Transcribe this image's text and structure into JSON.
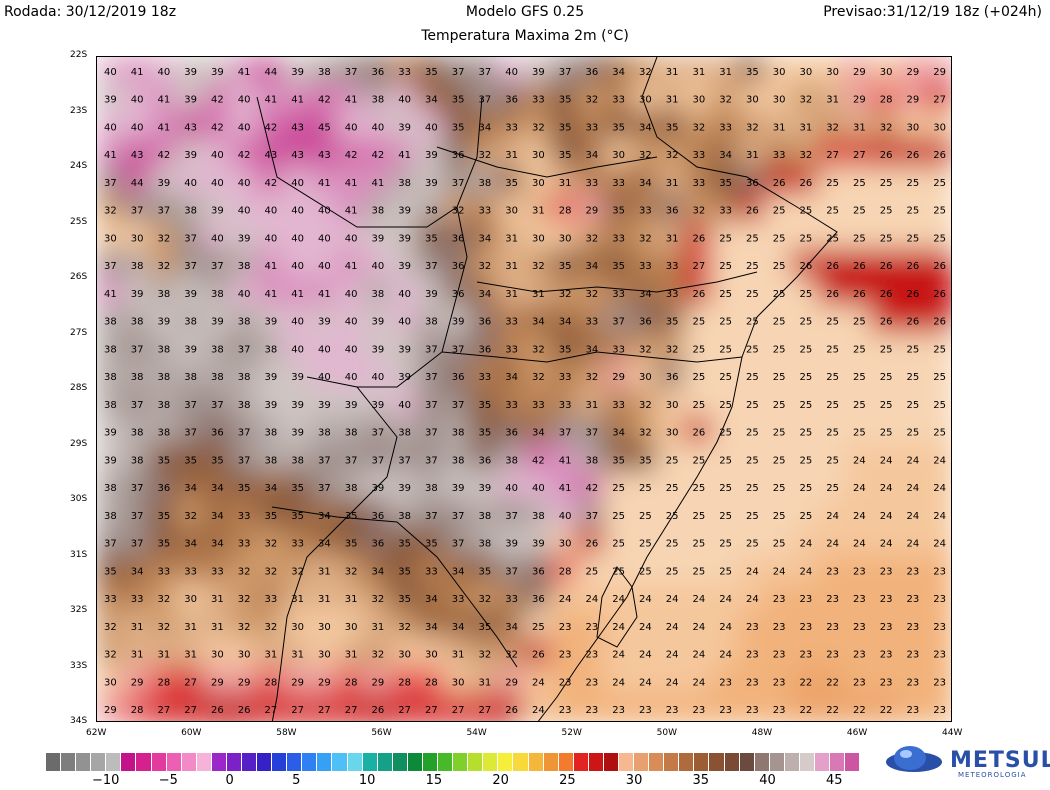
{
  "header": {
    "run": "Rodada: 30/12/2019 18z",
    "model": "Modelo GFS 0.25",
    "forecast": "Previsao:31/12/19 18z (+024h)",
    "field": "Temperatura Maxima 2m (°C)"
  },
  "map": {
    "lat_labels": [
      "22S",
      "23S",
      "24S",
      "25S",
      "26S",
      "27S",
      "28S",
      "29S",
      "30S",
      "31S",
      "32S",
      "33S",
      "34S"
    ],
    "lon_labels": [
      "62W",
      "60W",
      "58W",
      "56W",
      "54W",
      "52W",
      "50W",
      "48W",
      "46W",
      "44W"
    ],
    "temperature_grid": [
      [
        40,
        41,
        40,
        39,
        39,
        41,
        44,
        39,
        38,
        37,
        36,
        33,
        35,
        37,
        37,
        40,
        39,
        37,
        36,
        34,
        32,
        31,
        31,
        31,
        35,
        30,
        30,
        30,
        29,
        30,
        29,
        29
      ],
      [
        39,
        40,
        41,
        39,
        42,
        40,
        41,
        41,
        42,
        41,
        38,
        40,
        34,
        35,
        37,
        36,
        33,
        35,
        32,
        33,
        30,
        31,
        30,
        32,
        30,
        30,
        32,
        31,
        29,
        28,
        29,
        27
      ],
      [
        40,
        40,
        41,
        43,
        42,
        40,
        42,
        43,
        45,
        40,
        40,
        39,
        40,
        35,
        34,
        33,
        32,
        35,
        33,
        35,
        34,
        35,
        32,
        33,
        32,
        31,
        31,
        32,
        31,
        32,
        30,
        30
      ],
      [
        41,
        43,
        42,
        39,
        40,
        42,
        43,
        43,
        43,
        42,
        42,
        41,
        39,
        36,
        32,
        31,
        30,
        35,
        34,
        30,
        32,
        32,
        33,
        34,
        31,
        33,
        32,
        27,
        27,
        26,
        26,
        26
      ],
      [
        37,
        44,
        39,
        40,
        40,
        40,
        42,
        40,
        41,
        41,
        41,
        38,
        39,
        37,
        38,
        35,
        30,
        31,
        33,
        33,
        34,
        31,
        33,
        35,
        36,
        26,
        26,
        25,
        25,
        25,
        25,
        25
      ],
      [
        32,
        37,
        37,
        38,
        39,
        40,
        40,
        40,
        40,
        41,
        38,
        39,
        38,
        32,
        33,
        30,
        31,
        28,
        29,
        35,
        33,
        36,
        32,
        33,
        26,
        25,
        25,
        25,
        25,
        25,
        25,
        25
      ],
      [
        30,
        30,
        32,
        37,
        40,
        39,
        40,
        40,
        40,
        40,
        39,
        39,
        35,
        36,
        34,
        31,
        30,
        30,
        32,
        33,
        32,
        31,
        26,
        25,
        25,
        25,
        25,
        25,
        25,
        25,
        25,
        25
      ],
      [
        37,
        38,
        32,
        37,
        37,
        38,
        41,
        40,
        40,
        41,
        40,
        39,
        37,
        36,
        32,
        31,
        32,
        35,
        34,
        35,
        33,
        33,
        27,
        25,
        25,
        25,
        26,
        26,
        26,
        26,
        26,
        26
      ],
      [
        41,
        39,
        38,
        39,
        38,
        40,
        41,
        41,
        41,
        40,
        38,
        40,
        39,
        36,
        34,
        31,
        31,
        32,
        32,
        33,
        34,
        33,
        26,
        25,
        25,
        25,
        25,
        26,
        26,
        26,
        26,
        26
      ],
      [
        38,
        38,
        39,
        38,
        39,
        38,
        39,
        40,
        39,
        40,
        39,
        40,
        38,
        39,
        36,
        33,
        34,
        34,
        33,
        37,
        36,
        35,
        25,
        25,
        25,
        25,
        25,
        25,
        25,
        26,
        26,
        26
      ],
      [
        38,
        37,
        38,
        39,
        38,
        37,
        38,
        40,
        40,
        40,
        39,
        39,
        37,
        37,
        36,
        33,
        32,
        35,
        34,
        33,
        32,
        32,
        25,
        25,
        25,
        25,
        25,
        25,
        25,
        25,
        25,
        25
      ],
      [
        38,
        38,
        38,
        38,
        38,
        38,
        39,
        39,
        40,
        40,
        40,
        39,
        37,
        36,
        33,
        34,
        32,
        33,
        32,
        29,
        30,
        36,
        25,
        25,
        25,
        25,
        25,
        25,
        25,
        25,
        25,
        25
      ],
      [
        38,
        37,
        38,
        37,
        37,
        38,
        39,
        39,
        39,
        39,
        39,
        40,
        37,
        37,
        35,
        33,
        33,
        33,
        31,
        33,
        32,
        30,
        25,
        25,
        25,
        25,
        25,
        25,
        25,
        25,
        25,
        25
      ],
      [
        39,
        38,
        38,
        37,
        36,
        37,
        38,
        39,
        38,
        38,
        37,
        38,
        37,
        38,
        35,
        36,
        34,
        37,
        37,
        34,
        32,
        30,
        26,
        25,
        25,
        25,
        25,
        25,
        25,
        25,
        25,
        25
      ],
      [
        39,
        38,
        35,
        35,
        35,
        37,
        38,
        38,
        37,
        37,
        37,
        37,
        37,
        38,
        36,
        38,
        42,
        41,
        38,
        35,
        35,
        25,
        25,
        25,
        25,
        25,
        25,
        25,
        24,
        24,
        24,
        24
      ],
      [
        38,
        37,
        36,
        34,
        34,
        35,
        34,
        35,
        37,
        38,
        39,
        39,
        38,
        39,
        39,
        40,
        40,
        41,
        42,
        25,
        25,
        25,
        25,
        25,
        25,
        25,
        25,
        25,
        24,
        24,
        24,
        24
      ],
      [
        38,
        37,
        35,
        32,
        34,
        33,
        35,
        35,
        34,
        35,
        36,
        38,
        37,
        37,
        38,
        37,
        38,
        40,
        37,
        25,
        25,
        25,
        25,
        25,
        25,
        25,
        25,
        24,
        24,
        24,
        24,
        24
      ],
      [
        37,
        37,
        35,
        34,
        34,
        33,
        32,
        33,
        34,
        35,
        36,
        35,
        35,
        37,
        38,
        39,
        39,
        30,
        26,
        25,
        25,
        25,
        25,
        25,
        25,
        25,
        24,
        24,
        24,
        24,
        24,
        24
      ],
      [
        35,
        34,
        33,
        33,
        33,
        32,
        32,
        32,
        31,
        32,
        34,
        35,
        33,
        34,
        35,
        37,
        36,
        28,
        25,
        25,
        25,
        25,
        25,
        25,
        24,
        24,
        24,
        23,
        23,
        23,
        23,
        23
      ],
      [
        33,
        33,
        32,
        30,
        31,
        32,
        33,
        31,
        31,
        31,
        32,
        35,
        34,
        33,
        32,
        33,
        36,
        24,
        24,
        24,
        24,
        24,
        24,
        24,
        24,
        23,
        23,
        23,
        23,
        23,
        23,
        23
      ],
      [
        32,
        31,
        32,
        31,
        31,
        32,
        32,
        30,
        30,
        30,
        31,
        32,
        34,
        34,
        35,
        34,
        25,
        23,
        23,
        24,
        24,
        24,
        24,
        24,
        23,
        23,
        23,
        23,
        23,
        23,
        23,
        23
      ],
      [
        32,
        31,
        31,
        31,
        30,
        30,
        31,
        31,
        30,
        31,
        32,
        30,
        30,
        31,
        32,
        32,
        26,
        23,
        23,
        24,
        24,
        24,
        24,
        24,
        23,
        23,
        23,
        23,
        23,
        23,
        23,
        23
      ],
      [
        30,
        29,
        28,
        27,
        29,
        29,
        28,
        29,
        29,
        28,
        29,
        28,
        28,
        30,
        31,
        29,
        24,
        23,
        23,
        24,
        24,
        24,
        24,
        23,
        23,
        23,
        22,
        22,
        23,
        23,
        23,
        23
      ],
      [
        29,
        28,
        27,
        27,
        26,
        26,
        27,
        27,
        27,
        27,
        26,
        27,
        27,
        27,
        27,
        26,
        24,
        23,
        23,
        23,
        23,
        23,
        23,
        23,
        23,
        23,
        22,
        22,
        22,
        22,
        23,
        23
      ]
    ]
  },
  "colorbar": {
    "labels": [
      "−10",
      "−5",
      "0",
      "5",
      "10",
      "15",
      "20",
      "25",
      "30",
      "35",
      "40",
      "45"
    ],
    "colors": [
      "#6b6b6b",
      "#7e7e7e",
      "#929292",
      "#a6a6a6",
      "#bcbcbc",
      "#c4128a",
      "#d6208e",
      "#e23a9e",
      "#ec5fb2",
      "#f28ac7",
      "#f5b3da",
      "#9b27c9",
      "#7a22c8",
      "#5520c6",
      "#3422c6",
      "#2440d8",
      "#2a5ee8",
      "#2f80f2",
      "#36a0f5",
      "#4ec0f7",
      "#69d6ec",
      "#19b0a5",
      "#16a088",
      "#109060",
      "#0c8a3a",
      "#22a22a",
      "#48b92a",
      "#7fd02b",
      "#b5de2f",
      "#dde937",
      "#f5ee3a",
      "#f7d93a",
      "#f4b73a",
      "#f09535",
      "#f27b2e",
      "#e32222",
      "#cc1616",
      "#b00f0f",
      "#f5b890",
      "#e8a070",
      "#d88d58",
      "#c47a46",
      "#b06b3c",
      "#9c5d33",
      "#8a5232",
      "#7a4a34",
      "#6b4a3f",
      "#8f7772",
      "#a59490",
      "#bcafac",
      "#d5cbc9",
      "#e3a0c8",
      "#d878b4",
      "#cc569f"
    ],
    "accent": "#2a4fa8"
  },
  "logo": {
    "name": "METSUL",
    "tagline": "METEOROLOGIA"
  }
}
